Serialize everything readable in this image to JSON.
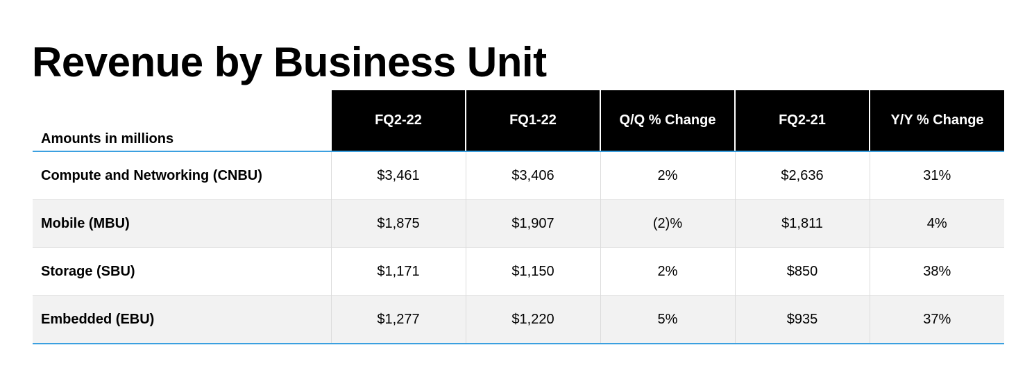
{
  "title": "Revenue by Business Unit",
  "table": {
    "corner_label": "Amounts in millions",
    "columns": [
      "FQ2-22",
      "FQ1-22",
      "Q/Q % Change",
      "FQ2-21",
      "Y/Y % Change"
    ],
    "rows": [
      {
        "label": "Compute and Networking (CNBU)",
        "values": [
          "$3,461",
          "$3,406",
          "2%",
          "$2,636",
          "31%"
        ]
      },
      {
        "label": "Mobile (MBU)",
        "values": [
          "$1,875",
          "$1,907",
          "(2)%",
          "$1,811",
          "4%"
        ]
      },
      {
        "label": "Storage (SBU)",
        "values": [
          "$1,171",
          "$1,150",
          "2%",
          "$850",
          "38%"
        ]
      },
      {
        "label": "Embedded (EBU)",
        "values": [
          "$1,277",
          "$1,220",
          "5%",
          "$935",
          "37%"
        ]
      }
    ]
  },
  "colors": {
    "header_background": "#000000",
    "header_text": "#ffffff",
    "accent_rule": "#3ba0e0",
    "alternate_row": "#f2f2f2"
  }
}
